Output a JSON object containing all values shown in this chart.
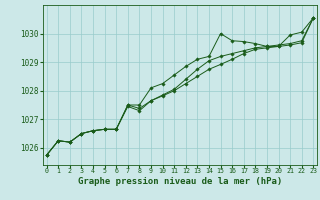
{
  "background_color": "#cce8e8",
  "plot_bg_color": "#cce8e8",
  "footer_color": "#2d6e2d",
  "grid_color": "#99cccc",
  "line_color": "#1a5c1a",
  "xlabel": "Graphe pression niveau de la mer (hPa)",
  "xlabel_fontsize": 6.5,
  "ytick_fontsize": 5.5,
  "xtick_fontsize": 4.8,
  "ylabel_ticks": [
    1026,
    1027,
    1028,
    1029,
    1030
  ],
  "xlim": [
    -0.3,
    23.3
  ],
  "ylim": [
    1025.4,
    1031.0
  ],
  "series": [
    [
      1025.75,
      1026.25,
      1026.2,
      1026.5,
      1026.6,
      1026.65,
      1026.65,
      1027.5,
      1027.5,
      1028.1,
      1028.25,
      1028.55,
      1028.85,
      1029.1,
      1029.2,
      1030.0,
      1029.75,
      1029.72,
      1029.65,
      1029.55,
      1029.55,
      1029.95,
      1030.05,
      1030.55
    ],
    [
      1025.75,
      1026.25,
      1026.2,
      1026.5,
      1026.6,
      1026.65,
      1026.65,
      1027.45,
      1027.3,
      1027.65,
      1027.85,
      1028.05,
      1028.4,
      1028.75,
      1029.05,
      1029.2,
      1029.3,
      1029.4,
      1029.5,
      1029.55,
      1029.6,
      1029.65,
      1029.75,
      1030.55
    ],
    [
      1025.75,
      1026.25,
      1026.2,
      1026.5,
      1026.6,
      1026.65,
      1026.65,
      1027.5,
      1027.38,
      1027.65,
      1027.82,
      1028.0,
      1028.25,
      1028.5,
      1028.75,
      1028.92,
      1029.1,
      1029.3,
      1029.45,
      1029.5,
      1029.55,
      1029.6,
      1029.68,
      1030.55
    ]
  ]
}
